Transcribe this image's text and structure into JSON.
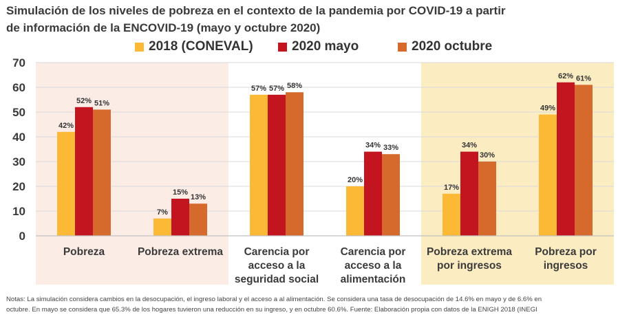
{
  "title_line1": "Simulación de los niveles de pobreza en el contexto de la pandemia por COVID-19 a partir",
  "title_line2": "de información de la ENCOVID-19 (mayo y octubre 2020)",
  "note_line1": "Notas: La simulación considera cambios en la desocupación, el ingreso laboral y el acceso a al alimentación. Se considera una tasa de desocupación de 14.6% en mayo y de 6.6% en",
  "note_line2": "octubre. En mayo se considera que 65.3% de los hogares tuvieron una reducción en su ingreso, y en octubre 60.6%. Fuente: Elaboración propia con datos de la ENIGH 2018 (INEGI",
  "colors": {
    "s2018": "#fbb935",
    "mayo": "#c3151f",
    "octubre": "#d66a2c",
    "band_pink": "#fcece6",
    "band_yellow": "#fcecc2",
    "grid": "#d9d9d9"
  },
  "chart_data": {
    "type": "bar",
    "ylim": [
      0,
      70
    ],
    "yticks": [
      0,
      10,
      20,
      30,
      40,
      50,
      60,
      70
    ],
    "grid": true,
    "legend_position": "top-center",
    "categories": [
      [
        "Pobreza"
      ],
      [
        "Pobreza extrema"
      ],
      [
        "Carencia por",
        "acceso a la",
        "seguridad social"
      ],
      [
        "Carencia por",
        "acceso a la",
        "alimentación"
      ],
      [
        "Pobreza extrema",
        "por ingresos"
      ],
      [
        "Pobreza por",
        "ingresos"
      ]
    ],
    "series": [
      {
        "name": "2018 (CONEVAL)",
        "values": [
          42,
          7,
          57,
          20,
          17,
          49
        ],
        "labels": [
          "42%",
          "7%",
          "57%",
          "20%",
          "17%",
          "49%"
        ]
      },
      {
        "name": "2020 mayo",
        "values": [
          52,
          15,
          57,
          34,
          34,
          62
        ],
        "labels": [
          "52%",
          "15%",
          "57%",
          "34%",
          "34%",
          "62%"
        ]
      },
      {
        "name": "2020 octubre",
        "values": [
          51,
          13,
          58,
          33,
          30,
          61
        ],
        "labels": [
          "51%",
          "13%",
          "58%",
          "33%",
          "30%",
          "61%"
        ]
      }
    ],
    "category_bands": [
      "pink",
      "pink",
      "none",
      "none",
      "yellow",
      "yellow"
    ]
  }
}
